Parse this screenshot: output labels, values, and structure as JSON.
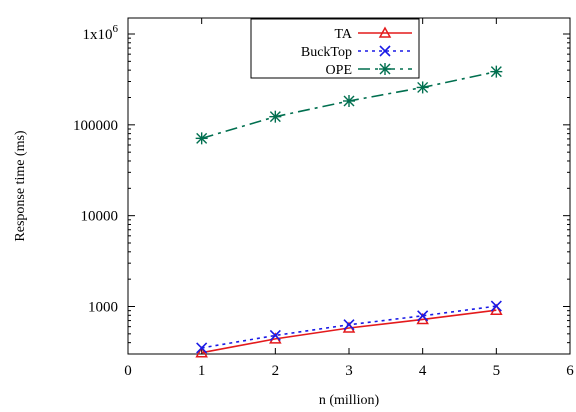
{
  "chart_data": {
    "type": "line",
    "title": "",
    "xlabel": "n (million)",
    "ylabel": "Response time (ms)",
    "x_scale": "linear",
    "y_scale": "log",
    "xlim": [
      0,
      6
    ],
    "ylim": [
      300,
      1500000
    ],
    "x_ticks": [
      0,
      1,
      2,
      3,
      4,
      5,
      6
    ],
    "x_tick_labels": [
      "0",
      "1",
      "2",
      "3",
      "4",
      "5",
      "6"
    ],
    "y_ticks": [
      1000,
      10000,
      100000,
      1000000
    ],
    "y_tick_labels": [
      "1000",
      "10000",
      "100000",
      "1x10^6"
    ],
    "grid": false,
    "legend_position": "top-center",
    "x": [
      1,
      2,
      3,
      4,
      5
    ],
    "series": [
      {
        "name": "TA",
        "values": [
          310,
          440,
          580,
          720,
          910
        ],
        "color": "#e41a1c",
        "dash": "solid",
        "marker": "triangle"
      },
      {
        "name": "BuckTop",
        "values": [
          350,
          480,
          630,
          790,
          1010
        ],
        "color": "#1a1ae6",
        "dash": "dotted",
        "marker": "x"
      },
      {
        "name": "OPE",
        "values": [
          71000,
          123000,
          183000,
          258000,
          385000
        ],
        "color": "#006f4f",
        "dash": "dashdot",
        "marker": "asterisk"
      }
    ]
  }
}
